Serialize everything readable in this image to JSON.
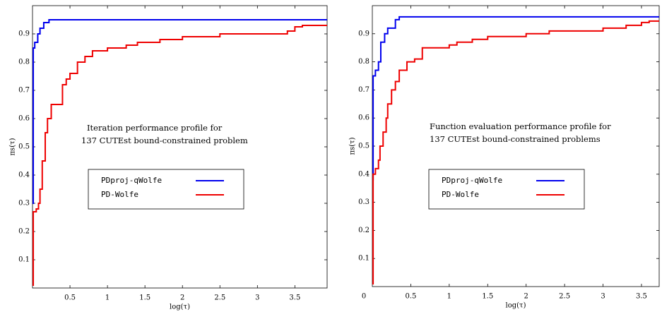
{
  "chart_data": [
    {
      "type": "line",
      "step": true,
      "annotation": [
        "Iteration performance profile for",
        "137 CUTEst bound-constrained problem"
      ],
      "xlabel": "log(τ)",
      "ylabel": "πs(τ)",
      "xlim": [
        0,
        3.93
      ],
      "ylim": [
        0,
        1
      ],
      "xticks": [
        0.5,
        1,
        1.5,
        2,
        2.5,
        3,
        3.5
      ],
      "yticks": [
        0.1,
        0.2,
        0.3,
        0.4,
        0.5,
        0.6,
        0.7,
        0.8,
        0.9
      ],
      "series": [
        {
          "name": "PDproj-qWolfe",
          "color": "#0000ee",
          "x": [
            0,
            0.01,
            0.03,
            0.07,
            0.1,
            0.15,
            0.22,
            3.93
          ],
          "values": [
            0.3,
            0.85,
            0.87,
            0.9,
            0.92,
            0.94,
            0.95,
            0.95
          ]
        },
        {
          "name": "PD-Wolfe",
          "color": "#ee0000",
          "x": [
            0,
            0.01,
            0.05,
            0.08,
            0.1,
            0.13,
            0.17,
            0.2,
            0.25,
            0.4,
            0.45,
            0.5,
            0.6,
            0.7,
            0.8,
            1.0,
            1.25,
            1.4,
            1.7,
            2.0,
            2.5,
            3.4,
            3.5,
            3.6,
            3.93
          ],
          "values": [
            0.01,
            0.27,
            0.28,
            0.3,
            0.35,
            0.45,
            0.55,
            0.6,
            0.65,
            0.72,
            0.74,
            0.76,
            0.8,
            0.82,
            0.84,
            0.85,
            0.86,
            0.87,
            0.88,
            0.89,
            0.9,
            0.91,
            0.925,
            0.93,
            0.93
          ]
        }
      ]
    },
    {
      "type": "line",
      "step": true,
      "annotation": [
        "Function evaluation performance profile for",
        "137 CUTEst bound-constrained problems"
      ],
      "xlabel": "log(τ)",
      "ylabel": "πs(τ)",
      "xlim": [
        0,
        3.73
      ],
      "ylim": [
        0,
        1
      ],
      "xticks": [
        0,
        0.5,
        1,
        1.5,
        2,
        2.5,
        3,
        3.5
      ],
      "yticks": [
        0.1,
        0.2,
        0.3,
        0.4,
        0.5,
        0.6,
        0.7,
        0.8,
        0.9
      ],
      "series": [
        {
          "name": "PDproj-qWolfe",
          "color": "#0000ee",
          "x": [
            0,
            0.01,
            0.04,
            0.08,
            0.11,
            0.16,
            0.2,
            0.3,
            0.35,
            3.73
          ],
          "values": [
            0.38,
            0.75,
            0.77,
            0.8,
            0.87,
            0.9,
            0.92,
            0.95,
            0.96,
            0.96
          ]
        },
        {
          "name": "PD-Wolfe",
          "color": "#ee0000",
          "x": [
            0,
            0.01,
            0.04,
            0.08,
            0.1,
            0.14,
            0.18,
            0.2,
            0.25,
            0.3,
            0.35,
            0.45,
            0.55,
            0.65,
            1.0,
            1.1,
            1.3,
            1.5,
            2.0,
            2.3,
            3.0,
            3.3,
            3.5,
            3.6,
            3.73
          ],
          "values": [
            0.01,
            0.4,
            0.42,
            0.45,
            0.5,
            0.55,
            0.6,
            0.65,
            0.7,
            0.73,
            0.77,
            0.8,
            0.81,
            0.85,
            0.86,
            0.87,
            0.88,
            0.89,
            0.9,
            0.91,
            0.92,
            0.93,
            0.94,
            0.945,
            0.945
          ]
        }
      ]
    }
  ]
}
